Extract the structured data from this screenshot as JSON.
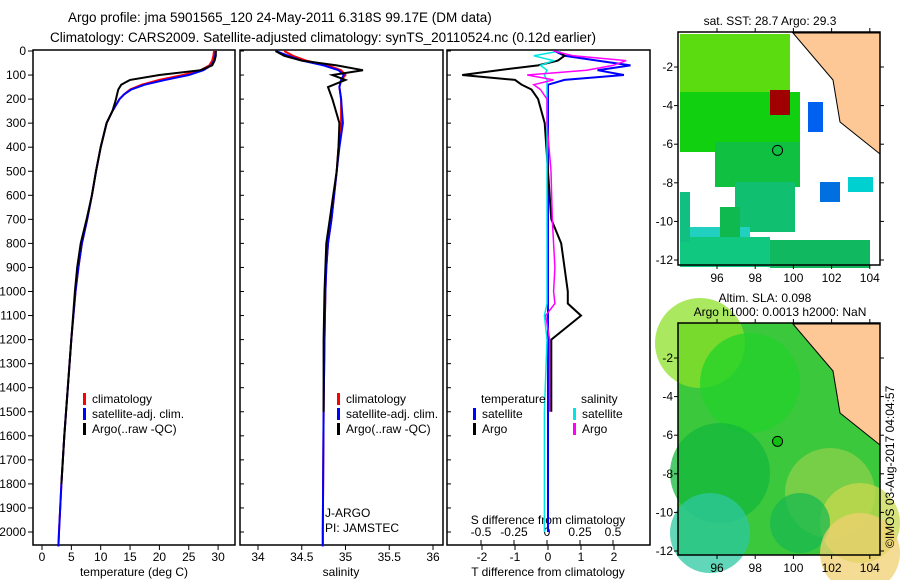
{
  "title_line1": "Argo profile: jma 5901565_120 24-May-2011 6.318S 99.17E (DM data)",
  "title_line2": "Climatology: CARS2009. Satellite-adjusted climatology: synTS_20110524.nc (0.12d earlier)",
  "side_label": "©IMOS 03-Aug-2017 04:04:57",
  "colors": {
    "climatology": "#ff0000",
    "satellite": "#0000ff",
    "argo": "#000000",
    "s_satellite": "#00e5e5",
    "s_argo": "#ff00ff",
    "land": "#fdc896"
  },
  "chart_data": [
    {
      "type": "line",
      "name": "temperature-panel",
      "xlabel": "temperature (deg C)",
      "ylabel": "",
      "xlim": [
        -1.5,
        32.5
      ],
      "ylim": [
        2060,
        0
      ],
      "xticks": [
        "0",
        "5",
        "10",
        "15",
        "20",
        "25",
        "30"
      ],
      "xtick_values": [
        0,
        5,
        10,
        15,
        20,
        25,
        30
      ],
      "yticks": [
        "0",
        "100",
        "200",
        "300",
        "400",
        "500",
        "600",
        "700",
        "800",
        "900",
        "1000",
        "1100",
        "1200",
        "1300",
        "1400",
        "1500",
        "1600",
        "1700",
        "1800",
        "1900",
        "2000"
      ],
      "ytick_values": [
        0,
        100,
        200,
        300,
        400,
        500,
        600,
        700,
        800,
        900,
        1000,
        1100,
        1200,
        1300,
        1400,
        1500,
        1600,
        1700,
        1800,
        1900,
        2000
      ],
      "legend": [
        "climatology",
        "satellite-adj. clim.",
        "Argo(..raw -QC)"
      ],
      "depth": [
        0,
        20,
        40,
        60,
        80,
        100,
        120,
        140,
        160,
        180,
        200,
        250,
        300,
        400,
        500,
        600,
        700,
        800,
        900,
        1000,
        1200,
        1400,
        1600,
        1800,
        2000,
        2060
      ],
      "series": [
        {
          "name": "climatology",
          "color": "#ff0000",
          "values": [
            29.3,
            29.2,
            29.0,
            28.5,
            27,
            24,
            20,
            17,
            15,
            14,
            13.2,
            12,
            11,
            10,
            9.2,
            8.5,
            7.7,
            6.8,
            6.2,
            5.7,
            5.0,
            4.4,
            3.8,
            3.3,
            2.9,
            2.8
          ]
        },
        {
          "name": "satellite-adj. clim.",
          "color": "#0000ff",
          "values": [
            29.6,
            29.5,
            29.3,
            28.8,
            27.5,
            25,
            21,
            17.5,
            15.2,
            14,
            13.2,
            12,
            11,
            10,
            9.2,
            8.5,
            7.7,
            6.8,
            6.2,
            5.7,
            5.0,
            4.4,
            3.8,
            3.3,
            2.9,
            2.8
          ]
        },
        {
          "name": "Argo(..raw -QC)",
          "color": "#000000",
          "values": [
            29.6,
            29.6,
            29.4,
            29.0,
            27,
            20,
            15,
            13.5,
            13,
            12.8,
            12.6,
            12,
            11,
            10,
            9.2,
            8.5,
            7.6,
            6.6,
            6.0,
            5.6,
            5.0,
            4.4,
            3.8,
            3.3,
            null,
            null
          ]
        }
      ]
    },
    {
      "type": "line",
      "name": "salinity-panel",
      "xlabel": "salinity",
      "xlim": [
        33.8,
        36.1
      ],
      "ylim": [
        2060,
        0
      ],
      "xticks": [
        "34",
        "34.5",
        "35",
        "35.5",
        "36"
      ],
      "xtick_values": [
        34,
        34.5,
        35,
        35.5,
        36
      ],
      "legend": [
        "climatology",
        "satellite-adj. clim.",
        "Argo(..raw -QC)"
      ],
      "annotation": [
        "J-ARGO",
        "PI: JAMSTEC"
      ],
      "depth": [
        0,
        20,
        40,
        60,
        80,
        100,
        120,
        150,
        200,
        300,
        400,
        500,
        600,
        700,
        800,
        900,
        1000,
        1200,
        1500,
        2000,
        2060
      ],
      "series": [
        {
          "name": "climatology",
          "color": "#ff0000",
          "values": [
            34.3,
            34.4,
            34.55,
            34.8,
            34.95,
            35.0,
            34.95,
            34.93,
            34.95,
            34.95,
            34.92,
            34.9,
            34.87,
            34.84,
            34.8,
            34.78,
            34.77,
            34.76,
            34.75,
            34.74,
            34.74
          ]
        },
        {
          "name": "satellite-adj. clim.",
          "color": "#0000ff",
          "values": [
            34.2,
            34.35,
            34.5,
            34.75,
            34.92,
            34.98,
            34.95,
            34.93,
            34.95,
            34.97,
            34.93,
            34.9,
            34.87,
            34.84,
            34.8,
            34.78,
            34.77,
            34.76,
            34.75,
            34.74,
            34.74
          ]
        },
        {
          "name": "Argo(..raw -QC)",
          "color": "#000000",
          "values": [
            34.2,
            34.3,
            34.5,
            34.9,
            35.2,
            34.85,
            35.0,
            34.8,
            34.85,
            34.93,
            34.92,
            34.9,
            34.86,
            34.82,
            34.78,
            34.77,
            34.76,
            34.75,
            34.75,
            null,
            null
          ]
        }
      ]
    },
    {
      "type": "line",
      "name": "difference-panel",
      "xlabel": "T difference from climatology",
      "xlabel_top": "S difference from climatology",
      "xlim_T": [
        -3.2,
        3.1
      ],
      "xlim_S": [
        -0.8,
        0.78
      ],
      "xticks": [
        "-2",
        "-1",
        "0",
        "1",
        "2"
      ],
      "xtick_values": [
        -2,
        -1,
        0,
        1,
        2
      ],
      "xticks_top": [
        "-0.5",
        "-0.25",
        "0",
        "0.25",
        "0.5"
      ],
      "xtick_values_top": [
        -0.5,
        -0.25,
        0,
        0.25,
        0.5
      ],
      "legend_t_title": "temperature",
      "legend_s_title": "salinity",
      "legend_t": [
        "satellite",
        "Argo"
      ],
      "legend_s": [
        "satellite",
        "Argo"
      ],
      "depth": [
        0,
        20,
        40,
        60,
        80,
        100,
        120,
        140,
        160,
        200,
        300,
        500,
        700,
        800,
        900,
        1000,
        1050,
        1100,
        1200,
        1500,
        2000
      ],
      "series": [
        {
          "name": "T satellite",
          "axis": "T",
          "color": "#0000ff",
          "values": [
            0.2,
            0.5,
            1.5,
            2.5,
            1.5,
            2.3,
            0.5,
            0,
            0,
            0,
            0,
            0,
            0,
            0,
            0,
            0,
            0,
            0,
            0,
            0,
            0
          ]
        },
        {
          "name": "T Argo",
          "axis": "T",
          "color": "#000000",
          "values": [
            0.3,
            0.5,
            0.3,
            -0.3,
            -1.5,
            -2.6,
            -1,
            -0.8,
            -0.5,
            -0.3,
            -0.1,
            0,
            0.1,
            0.4,
            0.5,
            0.6,
            0.6,
            1.0,
            0.1,
            0.1,
            null
          ]
        },
        {
          "name": "S satellite",
          "axis": "S",
          "color": "#00e5e5",
          "values": [
            0.1,
            -0.1,
            0.05,
            -0.05,
            0,
            -0.02,
            0,
            0,
            0,
            0,
            0,
            0,
            0,
            0,
            0,
            0,
            0,
            -0.02,
            0,
            -0.02,
            -0.02
          ]
        },
        {
          "name": "S Argo",
          "axis": "S",
          "color": "#ff00ff",
          "values": [
            0.05,
            0.2,
            0.6,
            0.5,
            0.3,
            -0.15,
            0.05,
            -0.1,
            -0.05,
            0.0,
            0.0,
            0.03,
            0.04,
            0.05,
            0.06,
            0.05,
            0.06,
            -0.01,
            0.02,
            0.02,
            null
          ]
        }
      ]
    },
    {
      "type": "heatmap",
      "name": "sst-map",
      "title": "sat. SST: 28.7 Argo: 29.3",
      "xticks": [
        "96",
        "98",
        "100",
        "102",
        "104"
      ],
      "xtick_values": [
        96,
        98,
        100,
        102,
        104
      ],
      "yticks": [
        "-2",
        "-4",
        "-6",
        "-8",
        "-10",
        "-12"
      ],
      "ytick_values": [
        -2,
        -4,
        -6,
        -8,
        -10,
        -12
      ],
      "xlim": [
        94.1,
        104.4
      ],
      "ylim": [
        -12.3,
        -0.3
      ],
      "argo_position": [
        99.17,
        -6.318
      ]
    },
    {
      "type": "heatmap",
      "name": "sla-map",
      "title_line1": "Altim. SLA: 0.098",
      "title_line2": "Argo h1000: 0.0013 h2000: NaN",
      "xticks": [
        "96",
        "98",
        "100",
        "102",
        "104"
      ],
      "xtick_values": [
        96,
        98,
        100,
        102,
        104
      ],
      "yticks": [
        "-2",
        "-4",
        "-6",
        "-8",
        "-10",
        "-12"
      ],
      "ytick_values": [
        -2,
        -4,
        -6,
        -8,
        -10,
        -12
      ],
      "xlim": [
        94.1,
        104.4
      ],
      "ylim": [
        -12.3,
        -0.3
      ],
      "argo_position": [
        99.17,
        -6.318
      ]
    }
  ]
}
